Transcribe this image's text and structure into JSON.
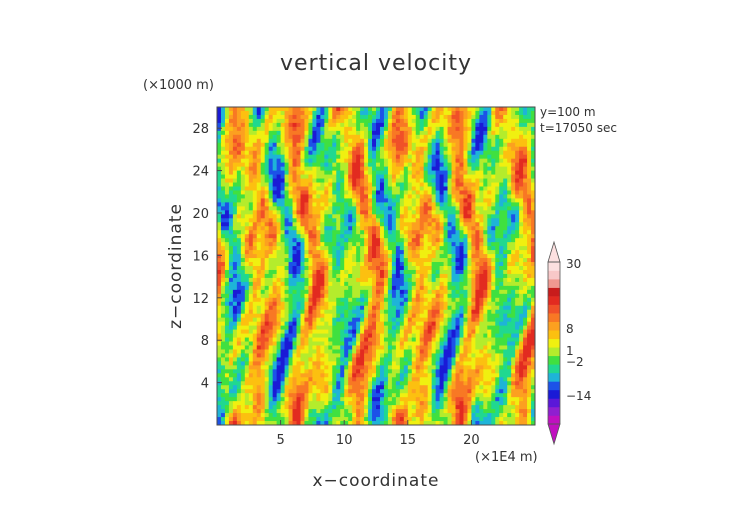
{
  "chart_data": {
    "type": "heatmap",
    "title": "vertical velocity",
    "xlabel": "x−coordinate",
    "ylabel": "z−coordinate",
    "x_unit": "(×1E4 m)",
    "y_unit": "(×1000 m)",
    "annotations": [
      "y=100  m",
      "t=17050  sec"
    ],
    "xlim": [
      0,
      25
    ],
    "ylim": [
      0,
      30
    ],
    "x_ticks": [
      "5",
      "10",
      "15",
      "20"
    ],
    "y_ticks": [
      "4",
      "8",
      "12",
      "16",
      "20",
      "24",
      "28"
    ],
    "colorbar": {
      "tick_labels": [
        "30",
        "8",
        "1",
        "−2",
        "−14"
      ],
      "colors": [
        "#c010c0",
        "#8f1fd0",
        "#5a18d8",
        "#1a1ad6",
        "#1c52e8",
        "#1eb4d8",
        "#20d890",
        "#40e040",
        "#b4ec2c",
        "#f0f010",
        "#fcc010",
        "#fca020",
        "#f87824",
        "#f05028",
        "#e22a20",
        "#c81c1c",
        "#f09890",
        "#f8c8c8",
        "#fce0e0"
      ]
    },
    "field_palette": [
      "#1a1ad6",
      "#1c52e8",
      "#1eb4d8",
      "#20d890",
      "#40e040",
      "#b4ec2c",
      "#f0f010",
      "#fcc010",
      "#fca020",
      "#f87824",
      "#f05028",
      "#e22a20"
    ]
  }
}
